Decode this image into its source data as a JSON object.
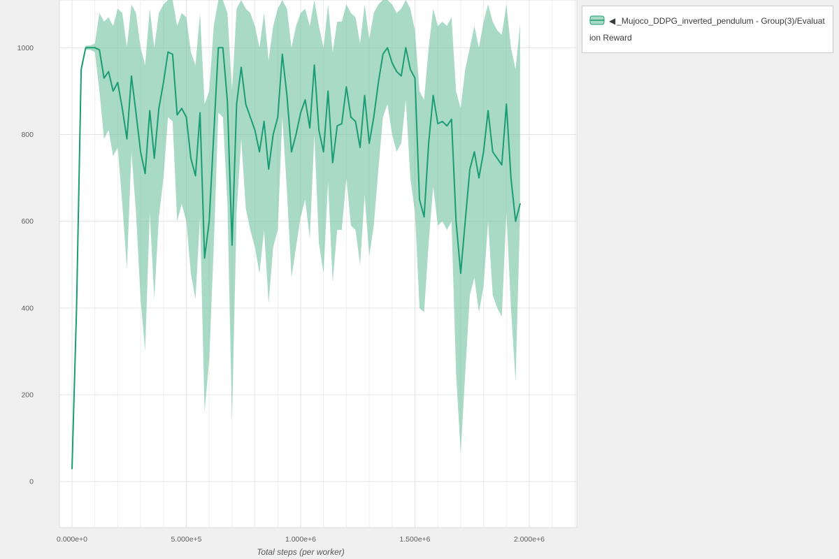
{
  "window": {
    "background": "#f0f0f0",
    "plot_background": "#ffffff"
  },
  "legend": {
    "collapse_glyph": "◀",
    "label": "_Mujoco_DDPG_inverted_pendulum - Group(3)/Evaluation Reward"
  },
  "chart_data": {
    "type": "line",
    "title": "",
    "xlabel": "Total steps (per worker)",
    "ylabel": "",
    "grid": true,
    "legend_position": "top-right",
    "x_tick_labels": [
      "0.000e+0",
      "5.000e+5",
      "1.000e+6",
      "1.500e+6",
      "2.000e+6"
    ],
    "x_tick_values": [
      0,
      500000,
      1000000,
      1500000,
      2000000
    ],
    "y_tick_values": [
      0,
      200,
      400,
      600,
      800,
      1000
    ],
    "xlim": [
      -55000,
      2208000
    ],
    "ylim": [
      -106,
      1110
    ],
    "minor_x_grid_step": 100000,
    "series": [
      {
        "name": "_Mujoco_DDPG_inverted_pendulum - Group(3)/Evaluation Reward",
        "color": "#1b9c75",
        "band_color": "#63bb97",
        "band_opacity": 0.55,
        "x_step": 20000,
        "mean": [
          30,
          400,
          950,
          1000,
          1000,
          1000,
          995,
          930,
          945,
          900,
          920,
          860,
          790,
          935,
          850,
          760,
          710,
          855,
          745,
          860,
          920,
          990,
          985,
          845,
          860,
          840,
          745,
          705,
          850,
          515,
          600,
          800,
          1000,
          1000,
          875,
          545,
          870,
          955,
          870,
          840,
          810,
          760,
          830,
          720,
          800,
          840,
          985,
          890,
          760,
          800,
          850,
          880,
          815,
          960,
          810,
          760,
          900,
          735,
          820,
          825,
          910,
          840,
          830,
          770,
          890,
          780,
          840,
          920,
          985,
          1000,
          965,
          945,
          935,
          1000,
          950,
          930,
          650,
          610,
          780,
          890,
          825,
          830,
          820,
          835,
          600,
          480,
          600,
          720,
          760,
          700,
          760,
          855,
          760,
          745,
          730,
          870,
          700,
          600,
          640
        ],
        "upper": [
          35,
          420,
          960,
          1005,
          1005,
          1010,
          1080,
          1060,
          1070,
          1050,
          1090,
          1080,
          1000,
          1100,
          1080,
          1000,
          960,
          1090,
          1000,
          1080,
          1100,
          1110,
          1110,
          1050,
          1080,
          1070,
          990,
          960,
          1080,
          870,
          900,
          1050,
          1110,
          1110,
          1080,
          900,
          1090,
          1110,
          1090,
          1080,
          1050,
          1000,
          1080,
          970,
          1050,
          1090,
          1110,
          1090,
          1000,
          1050,
          1080,
          1090,
          1050,
          1110,
          1050,
          1000,
          1100,
          990,
          1060,
          1060,
          1100,
          1080,
          1070,
          1010,
          1100,
          1020,
          1080,
          1100,
          1110,
          1110,
          1100,
          1080,
          1090,
          1110,
          1090,
          1040,
          900,
          880,
          1000,
          1090,
          1050,
          1060,
          1050,
          1070,
          900,
          860,
          950,
          1000,
          1050,
          1000,
          1060,
          1100,
          1060,
          1040,
          1030,
          1100,
          1000,
          950,
          1055
        ],
        "lower": [
          25,
          380,
          940,
          995,
          995,
          990,
          900,
          790,
          810,
          750,
          770,
          640,
          490,
          760,
          620,
          420,
          300,
          620,
          420,
          610,
          700,
          840,
          830,
          600,
          640,
          600,
          480,
          420,
          610,
          160,
          280,
          540,
          850,
          840,
          640,
          140,
          620,
          790,
          630,
          580,
          540,
          480,
          580,
          410,
          540,
          580,
          840,
          670,
          470,
          540,
          610,
          650,
          560,
          800,
          550,
          480,
          690,
          460,
          580,
          580,
          700,
          590,
          580,
          500,
          660,
          520,
          590,
          720,
          840,
          870,
          800,
          760,
          780,
          880,
          700,
          620,
          400,
          390,
          550,
          680,
          590,
          600,
          580,
          600,
          250,
          65,
          250,
          430,
          470,
          390,
          450,
          600,
          430,
          400,
          380,
          620,
          400,
          230,
          620
        ]
      }
    ]
  }
}
